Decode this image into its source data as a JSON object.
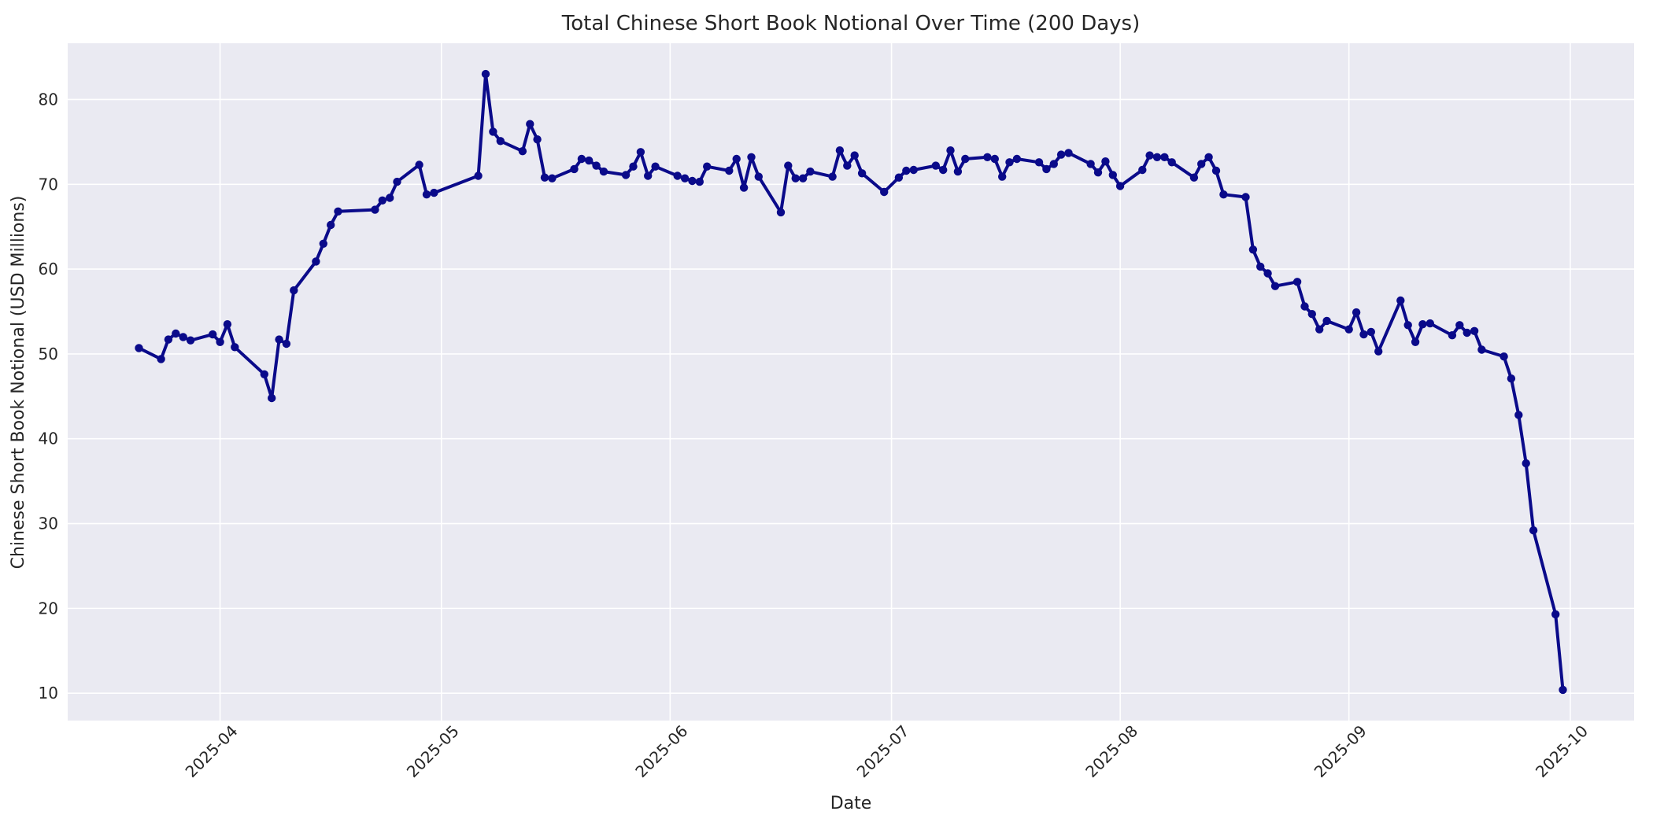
{
  "chart_data": {
    "type": "line",
    "title": "Total Chinese Short Book Notional Over Time (200 Days)",
    "xlabel": "Date",
    "ylabel": "Chinese Short Book Notional (USD Millions)",
    "legend": false,
    "grid": true,
    "figure_background": "#ffffff",
    "plot_background": "#eaeaf2",
    "grid_color": "#ffffff",
    "text_color": "#262626",
    "x_ticks": [
      {
        "date": "2025-04-01",
        "label": "2025-04"
      },
      {
        "date": "2025-05-01",
        "label": "2025-05"
      },
      {
        "date": "2025-06-01",
        "label": "2025-06"
      },
      {
        "date": "2025-07-01",
        "label": "2025-07"
      },
      {
        "date": "2025-08-01",
        "label": "2025-08"
      },
      {
        "date": "2025-09-01",
        "label": "2025-09"
      },
      {
        "date": "2025-10-01",
        "label": "2025-10"
      }
    ],
    "y_ticks": [
      10,
      20,
      30,
      40,
      50,
      60,
      70,
      80
    ],
    "x_range": [
      "2025-03-21",
      "2025-09-30"
    ],
    "y_data_range": [
      10.4,
      83.0
    ],
    "margin_fraction": 0.05,
    "series": [
      {
        "name": "Chinese Short Book Notional",
        "color": "#0a0a8a",
        "marker": "o",
        "dates": [
          "2025-03-21",
          "2025-03-24",
          "2025-03-25",
          "2025-03-26",
          "2025-03-27",
          "2025-03-28",
          "2025-03-31",
          "2025-04-01",
          "2025-04-02",
          "2025-04-03",
          "2025-04-07",
          "2025-04-08",
          "2025-04-09",
          "2025-04-10",
          "2025-04-11",
          "2025-04-14",
          "2025-04-15",
          "2025-04-16",
          "2025-04-17",
          "2025-04-22",
          "2025-04-23",
          "2025-04-24",
          "2025-04-25",
          "2025-04-28",
          "2025-04-29",
          "2025-04-30",
          "2025-05-06",
          "2025-05-07",
          "2025-05-08",
          "2025-05-09",
          "2025-05-12",
          "2025-05-13",
          "2025-05-14",
          "2025-05-15",
          "2025-05-16",
          "2025-05-19",
          "2025-05-20",
          "2025-05-21",
          "2025-05-22",
          "2025-05-23",
          "2025-05-26",
          "2025-05-27",
          "2025-05-28",
          "2025-05-29",
          "2025-05-30",
          "2025-06-02",
          "2025-06-03",
          "2025-06-04",
          "2025-06-05",
          "2025-06-06",
          "2025-06-09",
          "2025-06-10",
          "2025-06-11",
          "2025-06-12",
          "2025-06-13",
          "2025-06-16",
          "2025-06-17",
          "2025-06-18",
          "2025-06-19",
          "2025-06-20",
          "2025-06-23",
          "2025-06-24",
          "2025-06-25",
          "2025-06-26",
          "2025-06-27",
          "2025-06-30",
          "2025-07-02",
          "2025-07-03",
          "2025-07-04",
          "2025-07-07",
          "2025-07-08",
          "2025-07-09",
          "2025-07-10",
          "2025-07-11",
          "2025-07-14",
          "2025-07-15",
          "2025-07-16",
          "2025-07-17",
          "2025-07-18",
          "2025-07-21",
          "2025-07-22",
          "2025-07-23",
          "2025-07-24",
          "2025-07-25",
          "2025-07-28",
          "2025-07-29",
          "2025-07-30",
          "2025-07-31",
          "2025-08-01",
          "2025-08-04",
          "2025-08-05",
          "2025-08-06",
          "2025-08-07",
          "2025-08-08",
          "2025-08-11",
          "2025-08-12",
          "2025-08-13",
          "2025-08-14",
          "2025-08-15",
          "2025-08-18",
          "2025-08-19",
          "2025-08-20",
          "2025-08-21",
          "2025-08-22",
          "2025-08-25",
          "2025-08-26",
          "2025-08-27",
          "2025-08-28",
          "2025-08-29",
          "2025-09-01",
          "2025-09-02",
          "2025-09-03",
          "2025-09-04",
          "2025-09-05",
          "2025-09-08",
          "2025-09-09",
          "2025-09-10",
          "2025-09-11",
          "2025-09-12",
          "2025-09-15",
          "2025-09-16",
          "2025-09-17",
          "2025-09-18",
          "2025-09-19",
          "2025-09-22",
          "2025-09-23",
          "2025-09-24",
          "2025-09-25",
          "2025-09-26",
          "2025-09-29",
          "2025-09-30"
        ],
        "values": [
          50.7,
          49.4,
          51.7,
          52.4,
          52.0,
          51.6,
          52.3,
          51.4,
          53.5,
          50.8,
          47.6,
          44.8,
          51.7,
          51.2,
          57.5,
          60.9,
          63.0,
          65.2,
          66.8,
          67.0,
          68.1,
          68.4,
          70.3,
          72.3,
          68.8,
          69.0,
          71.0,
          83.0,
          76.2,
          75.1,
          73.9,
          77.1,
          75.3,
          70.8,
          70.7,
          71.8,
          73.0,
          72.8,
          72.2,
          71.5,
          71.1,
          72.1,
          73.8,
          71.0,
          72.1,
          71.0,
          70.7,
          70.4,
          70.3,
          72.1,
          71.6,
          73.0,
          69.6,
          73.2,
          70.9,
          66.7,
          72.2,
          70.7,
          70.7,
          71.5,
          70.9,
          74.0,
          72.2,
          73.4,
          71.3,
          69.1,
          70.8,
          71.6,
          71.7,
          72.2,
          71.7,
          74.0,
          71.5,
          73.0,
          73.2,
          73.0,
          70.9,
          72.6,
          73.0,
          72.6,
          71.8,
          72.4,
          73.5,
          73.7,
          72.4,
          71.4,
          72.7,
          71.1,
          69.8,
          71.7,
          73.4,
          73.2,
          73.2,
          72.6,
          70.8,
          72.4,
          73.2,
          71.6,
          68.8,
          68.5,
          62.3,
          60.3,
          59.5,
          58.0,
          58.5,
          55.6,
          54.7,
          52.9,
          53.9,
          52.9,
          54.9,
          52.3,
          52.6,
          50.3,
          56.3,
          53.4,
          51.4,
          53.5,
          53.6,
          52.2,
          53.4,
          52.5,
          52.7,
          50.5,
          49.7,
          47.1,
          42.8,
          37.1,
          29.2,
          19.3,
          10.4
        ]
      }
    ]
  }
}
